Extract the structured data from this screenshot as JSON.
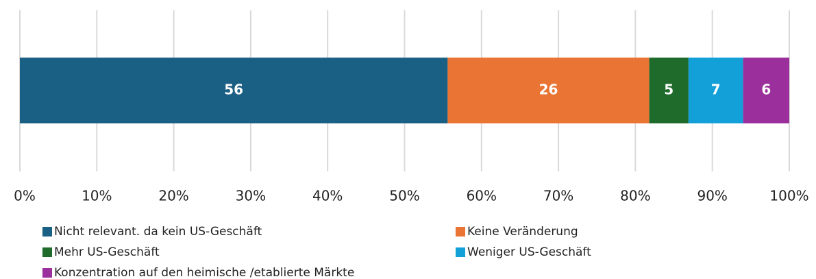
{
  "chart_data": {
    "type": "bar",
    "orientation": "horizontal",
    "stacked": true,
    "series": [
      {
        "name": "Nicht relevant. da kein US-Geschäft",
        "color": "#1a5f84",
        "values": [
          55.6
        ],
        "value_labels": [
          "56"
        ]
      },
      {
        "name": "Keine Veränderung",
        "color": "#ea7433",
        "values": [
          26.2
        ],
        "value_labels": [
          "26"
        ]
      },
      {
        "name": "Mehr US-Geschäft",
        "color": "#1e6b2c",
        "values": [
          5.1
        ],
        "value_labels": [
          "5"
        ]
      },
      {
        "name": "Weniger US-Geschäft",
        "color": "#13a0d8",
        "values": [
          7.1
        ],
        "value_labels": [
          "7"
        ]
      },
      {
        "name": "Konzentration auf den heimische /etablierte Märkte",
        "color": "#9b2f9b",
        "values": [
          6.0
        ],
        "value_labels": [
          "6"
        ]
      }
    ],
    "xlim": [
      0,
      100
    ],
    "xticks": [
      {
        "value": 0,
        "label": "0%"
      },
      {
        "value": 10,
        "label": "10%"
      },
      {
        "value": 20,
        "label": "20%"
      },
      {
        "value": 30,
        "label": "30%"
      },
      {
        "value": 40,
        "label": "40%"
      },
      {
        "value": 50,
        "label": "50%"
      },
      {
        "value": 60,
        "label": "60%"
      },
      {
        "value": 70,
        "label": "70%"
      },
      {
        "value": 80,
        "label": "80%"
      },
      {
        "value": 90,
        "label": "90%"
      },
      {
        "value": 100,
        "label": "100%"
      }
    ],
    "grid": true,
    "legend": "bottom"
  }
}
